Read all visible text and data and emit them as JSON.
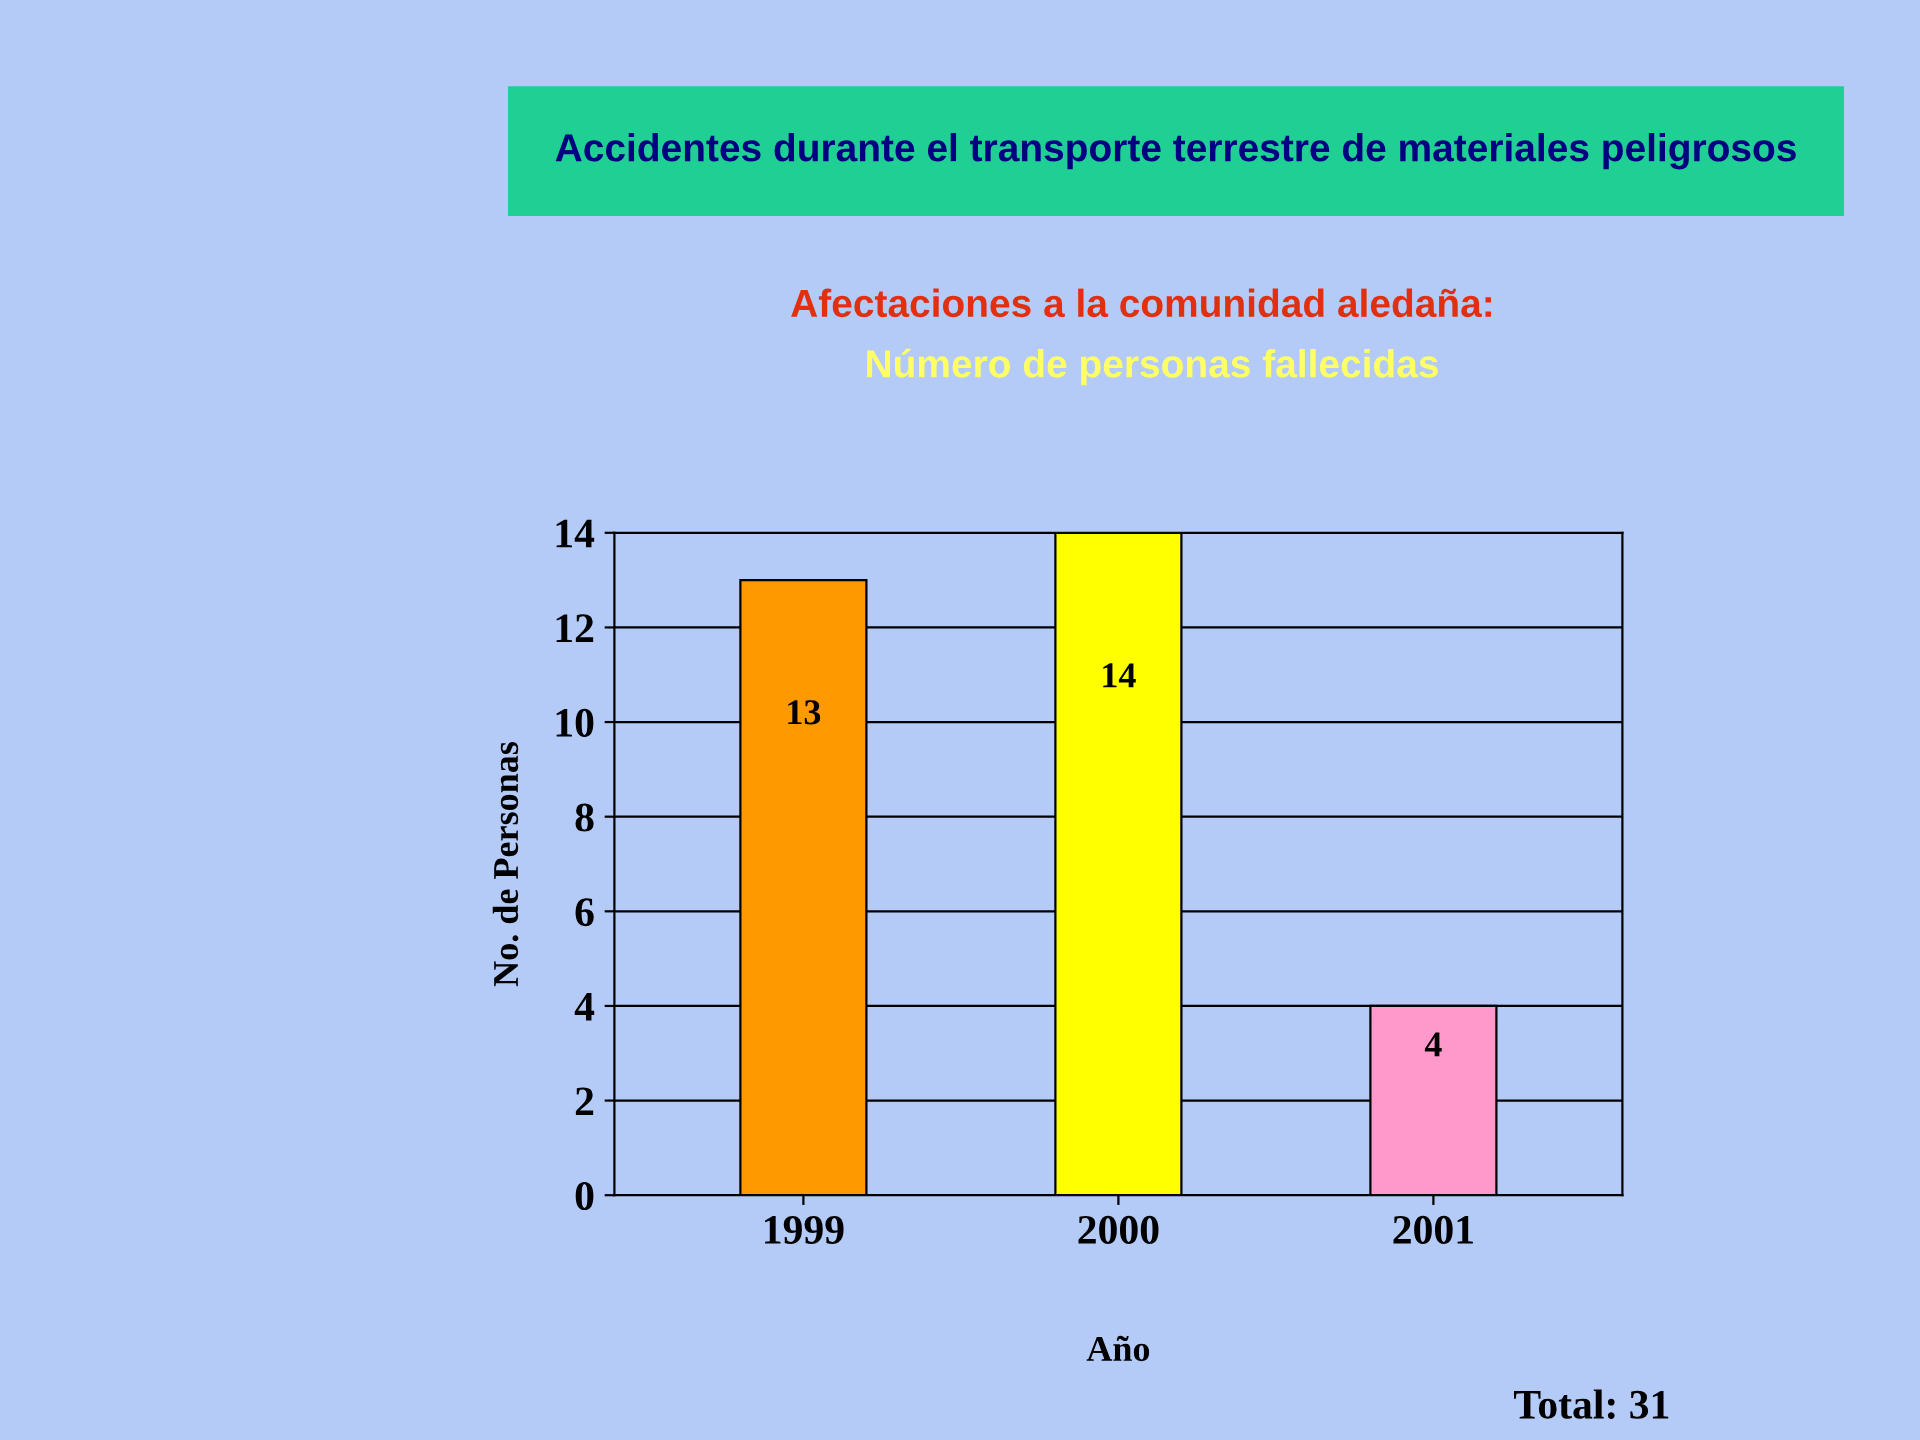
{
  "chart_data": {
    "type": "bar",
    "title": "Accidentes durante el transporte terrestre de materiales peligrosos",
    "subtitle": "Afectaciones a la comunidad aledaña:",
    "annotations": [
      "Número de personas fallecidas",
      "Total: 31"
    ],
    "xlabel": "Año",
    "ylabel": "No. de Personas",
    "categories": [
      "1999",
      "2000",
      "2001"
    ],
    "values": [
      13,
      14,
      4
    ],
    "colors": [
      "#ff9900",
      "#ffff00",
      "#ff99cc"
    ],
    "ylim": [
      0,
      14
    ],
    "yticks": [
      0,
      2,
      4,
      6,
      8,
      10,
      12,
      14
    ],
    "grid": "y",
    "data_labels": true
  }
}
